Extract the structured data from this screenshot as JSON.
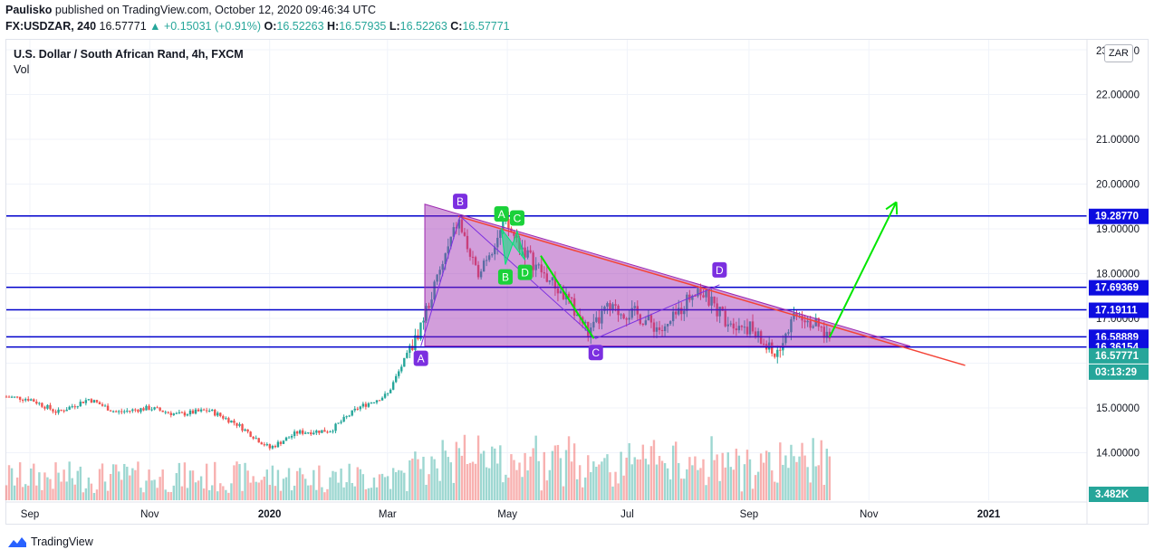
{
  "header": {
    "author": "Paulisko",
    "published_text": "published on TradingView.com, October 12, 2020 09:46:34 UTC",
    "symbol": "FX:USDZAR, 240",
    "last": "16.57771",
    "change": "▲ +0.15031 (+0.91%)",
    "open_label": "O:",
    "open": "16.52263",
    "high_label": "H:",
    "high": "16.57935",
    "low_label": "L:",
    "low": "16.52263",
    "close_label": "C:",
    "close": "16.57771"
  },
  "legend": {
    "title": "U.S. Dollar / South African Rand, 4h, FXCM",
    "volume": "Vol"
  },
  "currency_button": "ZAR",
  "branding": "TradingView",
  "colors": {
    "up": "#26a69a",
    "down": "#ef5350",
    "level_line": "#0000cc",
    "triangle_fill": "#9c27b0",
    "pattern_green": "#00e676",
    "arrow_green": "#00e600",
    "trend_red": "#f44336",
    "harmonic_purple": "#7b2fe0",
    "current_price": "#26a69a",
    "level_tag": "#0d0de0"
  },
  "chart_data": {
    "type": "candlestick",
    "y_axis": {
      "range": [
        13.1,
        23.0
      ],
      "ticks": [
        "22.00000",
        "21.00000",
        "20.00000",
        "19.00000",
        "18.00000",
        "17.00000",
        "15.00000",
        "14.00000"
      ],
      "top_label_partial": "23.00000"
    },
    "x_axis": {
      "ticks": [
        {
          "label": "Sep",
          "bold": false
        },
        {
          "label": "Nov",
          "bold": false
        },
        {
          "label": "2020",
          "bold": true
        },
        {
          "label": "Mar",
          "bold": false
        },
        {
          "label": "May",
          "bold": false
        },
        {
          "label": "Jul",
          "bold": false
        },
        {
          "label": "Sep",
          "bold": false
        },
        {
          "label": "Nov",
          "bold": false
        },
        {
          "label": "2021",
          "bold": true
        }
      ]
    },
    "price_path": [
      [
        "2019-08-20",
        15.25
      ],
      [
        "2019-09-01",
        15.2
      ],
      [
        "2019-09-15",
        14.9
      ],
      [
        "2019-10-01",
        15.2
      ],
      [
        "2019-10-15",
        14.9
      ],
      [
        "2019-11-01",
        15.0
      ],
      [
        "2019-11-15",
        14.85
      ],
      [
        "2019-12-01",
        14.95
      ],
      [
        "2019-12-15",
        14.65
      ],
      [
        "2020-01-01",
        14.1
      ],
      [
        "2020-01-15",
        14.45
      ],
      [
        "2020-02-01",
        14.5
      ],
      [
        "2020-02-15",
        15.0
      ],
      [
        "2020-03-01",
        15.3
      ],
      [
        "2020-03-10",
        16.1
      ],
      [
        "2020-03-15",
        16.5
      ],
      [
        "2020-03-25",
        17.7
      ],
      [
        "2020-04-06",
        19.2
      ],
      [
        "2020-04-15",
        18.0
      ],
      [
        "2020-04-30",
        19.1
      ],
      [
        "2020-05-15",
        18.2
      ],
      [
        "2020-06-01",
        17.4
      ],
      [
        "2020-06-12",
        16.65
      ],
      [
        "2020-06-20",
        17.2
      ],
      [
        "2020-07-05",
        17.1
      ],
      [
        "2020-07-20",
        16.7
      ],
      [
        "2020-08-05",
        17.7
      ],
      [
        "2020-08-20",
        17.0
      ],
      [
        "2020-09-01",
        16.8
      ],
      [
        "2020-09-14",
        16.15
      ],
      [
        "2020-09-25",
        17.2
      ],
      [
        "2020-10-12",
        16.58
      ]
    ],
    "volume_axis_label": "3.482K",
    "horizontal_levels": [
      {
        "value": 19.2877,
        "label": "19.28770"
      },
      {
        "value": 17.69369,
        "label": "17.69369"
      },
      {
        "value": 17.19111,
        "label": "17.19111"
      },
      {
        "value": 16.58889,
        "label": "16.58889"
      },
      {
        "value": 16.36154,
        "label": "16.36154"
      }
    ],
    "current_price": {
      "value": 16.57771,
      "label": "16.57771",
      "countdown": "03:13:29"
    },
    "triangle": [
      [
        "2020-03-20",
        19.55
      ],
      [
        "2020-11-22",
        16.38
      ],
      [
        "2020-03-20",
        16.38
      ]
    ],
    "trend_line": [
      [
        "2020-04-06",
        19.28
      ],
      [
        "2020-12-20",
        15.95
      ]
    ],
    "target_arrow": [
      [
        "2020-10-12",
        16.58
      ],
      [
        "2020-11-15",
        19.6
      ]
    ],
    "harmonic_points": [
      {
        "label": "A",
        "date": "2020-03-18",
        "value": 16.38
      },
      {
        "label": "B",
        "date": "2020-04-07",
        "value": 19.28
      },
      {
        "label": "C",
        "date": "2020-06-15",
        "value": 16.55
      },
      {
        "label": "D",
        "date": "2020-08-17",
        "value": 17.75
      }
    ],
    "small_pattern_points": [
      {
        "label": "A",
        "date": "2020-04-28",
        "value": 19.0
      },
      {
        "label": "B",
        "date": "2020-04-30",
        "value": 18.2
      },
      {
        "label": "C",
        "date": "2020-05-06",
        "value": 18.95
      },
      {
        "label": "D",
        "date": "2020-05-10",
        "value": 18.3
      }
    ],
    "swing_arrow": [
      [
        "2020-05-18",
        18.4
      ],
      [
        "2020-06-14",
        16.55
      ]
    ]
  }
}
